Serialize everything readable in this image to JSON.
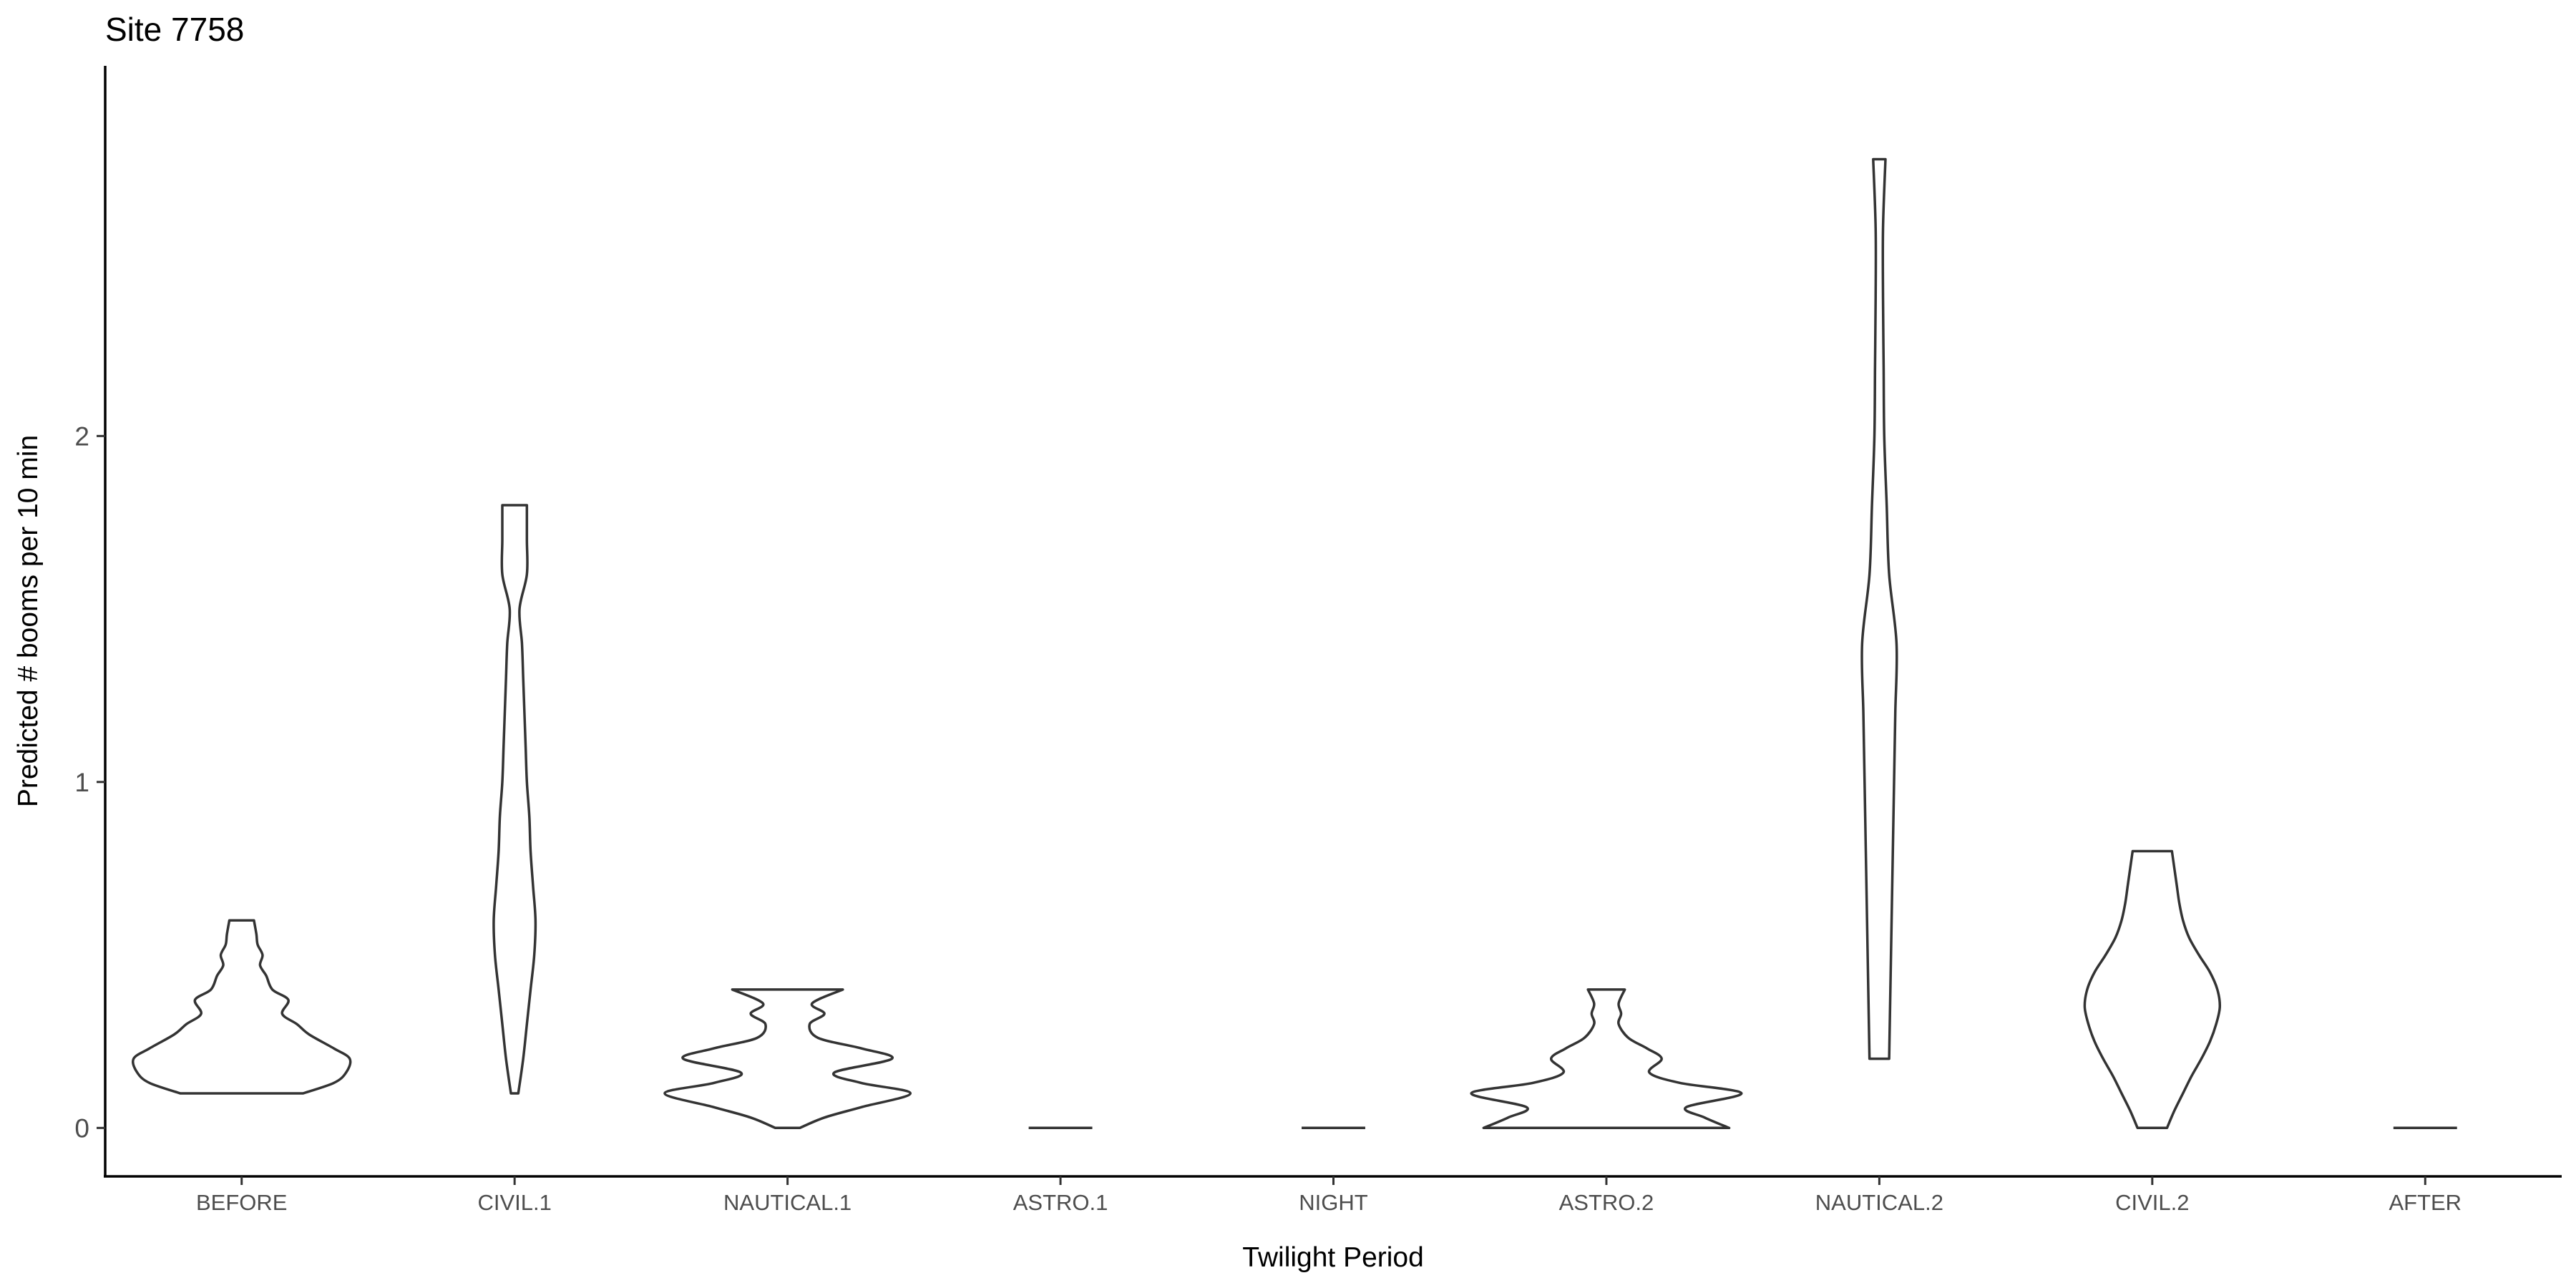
{
  "chart_data": {
    "type": "violin",
    "title": "Site 7758",
    "xlabel": "Twilight Period",
    "ylabel": "Predicted # booms per 10 min",
    "ylim": [
      -0.14,
      3.07
    ],
    "yticks": [
      0,
      1,
      2
    ],
    "categories": [
      "BEFORE",
      "CIVIL.1",
      "NAUTICAL.1",
      "ASTRO.1",
      "NIGHT",
      "ASTRO.2",
      "NAUTICAL.2",
      "CIVIL.2",
      "AFTER"
    ],
    "series": [
      {
        "name": "BEFORE",
        "density": [
          [
            0.1,
            0.5
          ],
          [
            0.13,
            0.75
          ],
          [
            0.16,
            0.85
          ],
          [
            0.2,
            0.88
          ],
          [
            0.23,
            0.75
          ],
          [
            0.27,
            0.55
          ],
          [
            0.3,
            0.45
          ],
          [
            0.33,
            0.33
          ],
          [
            0.37,
            0.38
          ],
          [
            0.4,
            0.25
          ],
          [
            0.44,
            0.2
          ],
          [
            0.47,
            0.15
          ],
          [
            0.5,
            0.17
          ],
          [
            0.53,
            0.13
          ],
          [
            0.56,
            0.12
          ],
          [
            0.6,
            0.1
          ]
        ]
      },
      {
        "name": "CIVIL.1",
        "density": [
          [
            0.1,
            0.03
          ],
          [
            0.2,
            0.07
          ],
          [
            0.3,
            0.1
          ],
          [
            0.4,
            0.13
          ],
          [
            0.5,
            0.16
          ],
          [
            0.6,
            0.17
          ],
          [
            0.7,
            0.15
          ],
          [
            0.8,
            0.13
          ],
          [
            0.9,
            0.12
          ],
          [
            1.0,
            0.1
          ],
          [
            1.1,
            0.09
          ],
          [
            1.2,
            0.08
          ],
          [
            1.3,
            0.07
          ],
          [
            1.4,
            0.06
          ],
          [
            1.5,
            0.04
          ],
          [
            1.6,
            0.1
          ],
          [
            1.7,
            0.1
          ],
          [
            1.8,
            0.1
          ]
        ]
      },
      {
        "name": "NAUTICAL.1",
        "density": [
          [
            0.0,
            0.1
          ],
          [
            0.03,
            0.3
          ],
          [
            0.06,
            0.6
          ],
          [
            0.1,
            1.0
          ],
          [
            0.13,
            0.6
          ],
          [
            0.16,
            0.38
          ],
          [
            0.2,
            0.85
          ],
          [
            0.23,
            0.6
          ],
          [
            0.26,
            0.25
          ],
          [
            0.3,
            0.18
          ],
          [
            0.33,
            0.3
          ],
          [
            0.36,
            0.2
          ],
          [
            0.4,
            0.45
          ]
        ]
      },
      {
        "name": "ASTRO.1",
        "density": [
          [
            0.0,
            0.36
          ],
          [
            0.0,
            0.36
          ]
        ]
      },
      {
        "name": "NIGHT",
        "density": [
          [
            0.0,
            0.36
          ],
          [
            0.0,
            0.36
          ]
        ]
      },
      {
        "name": "ASTRO.2",
        "density": [
          [
            0.0,
            1.0
          ],
          [
            0.03,
            0.8
          ],
          [
            0.06,
            0.65
          ],
          [
            0.1,
            1.1
          ],
          [
            0.13,
            0.6
          ],
          [
            0.16,
            0.35
          ],
          [
            0.2,
            0.45
          ],
          [
            0.23,
            0.33
          ],
          [
            0.26,
            0.18
          ],
          [
            0.3,
            0.1
          ],
          [
            0.33,
            0.12
          ],
          [
            0.36,
            0.1
          ],
          [
            0.4,
            0.15
          ]
        ]
      },
      {
        "name": "NAUTICAL.2",
        "density": [
          [
            0.2,
            0.08
          ],
          [
            0.4,
            0.09
          ],
          [
            0.6,
            0.1
          ],
          [
            0.8,
            0.11
          ],
          [
            1.0,
            0.12
          ],
          [
            1.2,
            0.13
          ],
          [
            1.4,
            0.14
          ],
          [
            1.6,
            0.08
          ],
          [
            1.8,
            0.06
          ],
          [
            2.0,
            0.04
          ],
          [
            2.2,
            0.035
          ],
          [
            2.4,
            0.03
          ],
          [
            2.6,
            0.03
          ],
          [
            2.8,
            0.05
          ]
        ]
      },
      {
        "name": "CIVIL.2",
        "density": [
          [
            0.0,
            0.12
          ],
          [
            0.05,
            0.18
          ],
          [
            0.1,
            0.25
          ],
          [
            0.15,
            0.32
          ],
          [
            0.2,
            0.4
          ],
          [
            0.25,
            0.47
          ],
          [
            0.3,
            0.52
          ],
          [
            0.35,
            0.55
          ],
          [
            0.4,
            0.53
          ],
          [
            0.45,
            0.47
          ],
          [
            0.5,
            0.38
          ],
          [
            0.55,
            0.3
          ],
          [
            0.6,
            0.25
          ],
          [
            0.65,
            0.22
          ],
          [
            0.7,
            0.2
          ],
          [
            0.75,
            0.18
          ],
          [
            0.8,
            0.16
          ]
        ]
      },
      {
        "name": "AFTER",
        "density": [
          [
            0.0,
            0.36
          ],
          [
            0.0,
            0.36
          ]
        ]
      }
    ]
  }
}
